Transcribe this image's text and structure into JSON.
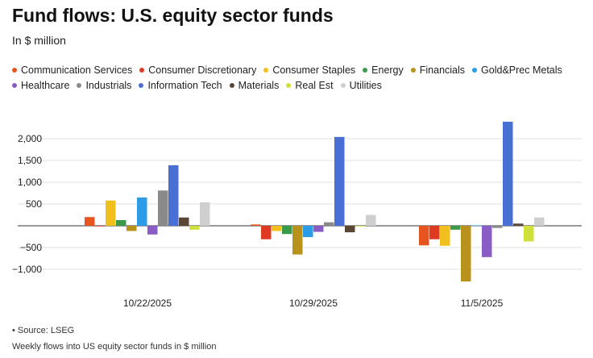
{
  "title": "Fund flows: U.S. equity sector funds",
  "subtitle": "In $ million",
  "source": "• Source: LSEG",
  "note": "Weekly flows into US equity sector funds in $ million",
  "chart_data": {
    "type": "bar",
    "categories": [
      "10/22/2025",
      "10/29/2025",
      "11/5/2025"
    ],
    "ylim": [
      -1300,
      2500
    ],
    "yticks": [
      2000,
      1500,
      1000,
      500,
      -500,
      -1000
    ],
    "ytick_labels": [
      "2,000",
      "1,500",
      "1,000",
      "500",
      "−500",
      "−1,000"
    ],
    "grid": true,
    "legend_position": "top",
    "series": [
      {
        "name": "Communication Services",
        "color": "#e8541e",
        "values": [
          200,
          30,
          -450
        ]
      },
      {
        "name": "Consumer Discretionary",
        "color": "#de3a22",
        "values": [
          0,
          -310,
          -310
        ]
      },
      {
        "name": "Consumer Staples",
        "color": "#f2c01c",
        "values": [
          580,
          -120,
          -460
        ]
      },
      {
        "name": "Energy",
        "color": "#3a9a48",
        "values": [
          130,
          -190,
          -90
        ]
      },
      {
        "name": "Financials",
        "color": "#b8921a",
        "values": [
          -120,
          -660,
          -1280
        ]
      },
      {
        "name": "Gold&Prec Metals",
        "color": "#2b9ce6",
        "values": [
          650,
          -260,
          10
        ]
      },
      {
        "name": "Healthcare",
        "color": "#8a5cc6",
        "values": [
          -200,
          -140,
          -720
        ]
      },
      {
        "name": "Industrials",
        "color": "#8a8a8a",
        "values": [
          810,
          80,
          -50
        ]
      },
      {
        "name": "Information Tech",
        "color": "#4a6fd4",
        "values": [
          1390,
          2040,
          2390
        ]
      },
      {
        "name": "Materials",
        "color": "#5b4636",
        "values": [
          190,
          -150,
          50
        ]
      },
      {
        "name": "Real Est",
        "color": "#cfe03a",
        "values": [
          -90,
          0,
          -360
        ]
      },
      {
        "name": "Utilities",
        "color": "#cfcfcf",
        "values": [
          540,
          250,
          190
        ]
      }
    ]
  }
}
